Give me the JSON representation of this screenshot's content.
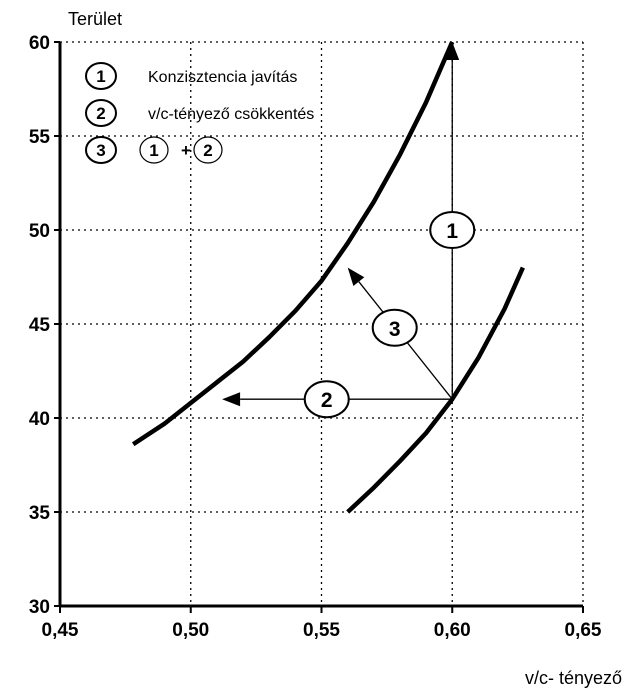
{
  "chart_data": {
    "type": "line",
    "xlabel": "v/c- tényező",
    "ylabel": "Terület",
    "xlim": [
      0.45,
      0.65
    ],
    "ylim": [
      30,
      60
    ],
    "x_ticks": [
      0.45,
      0.5,
      0.55,
      0.6,
      0.65
    ],
    "x_tick_labels": [
      "0,45",
      "0,50",
      "0,55",
      "0,60",
      "0,65"
    ],
    "y_ticks": [
      30,
      35,
      40,
      45,
      50,
      55,
      60
    ],
    "y_tick_labels": [
      "30",
      "35",
      "40",
      "45",
      "50",
      "55",
      "60"
    ],
    "grid": "dotted",
    "series": [
      {
        "x": [
          0.478,
          0.49,
          0.5,
          0.51,
          0.52,
          0.53,
          0.54,
          0.55,
          0.56,
          0.57,
          0.58,
          0.59,
          0.6
        ],
        "y": [
          38.6,
          39.7,
          40.8,
          41.9,
          43.0,
          44.3,
          45.7,
          47.3,
          49.3,
          51.5,
          54.0,
          56.8,
          60.0
        ]
      },
      {
        "x": [
          0.56,
          0.57,
          0.58,
          0.59,
          0.6,
          0.61,
          0.62,
          0.627
        ],
        "y": [
          35.0,
          36.3,
          37.7,
          39.2,
          41.0,
          43.2,
          45.8,
          48.0
        ]
      }
    ],
    "arrows": [
      {
        "label": "1",
        "from": [
          0.6,
          41.0
        ],
        "to": [
          0.6,
          60.0
        ]
      },
      {
        "label": "2",
        "from": [
          0.6,
          41.0
        ],
        "to": [
          0.512,
          41.0
        ]
      },
      {
        "label": "3",
        "from": [
          0.6,
          41.0
        ],
        "to": [
          0.56,
          48.0
        ]
      }
    ],
    "arrow_markers": [
      {
        "label": "1",
        "x": 0.6,
        "y": 50.0
      },
      {
        "label": "2",
        "x": 0.552,
        "y": 41.0
      },
      {
        "label": "3",
        "x": 0.578,
        "y": 44.8
      }
    ],
    "legend": {
      "placement": "top-left",
      "items": [
        {
          "number": "1",
          "text": "Konzisztencia javítás"
        },
        {
          "number": "2",
          "text": "v/c-tényező csökkentés"
        },
        {
          "number": "3",
          "combo": [
            "1",
            "+",
            "2"
          ]
        }
      ]
    }
  }
}
